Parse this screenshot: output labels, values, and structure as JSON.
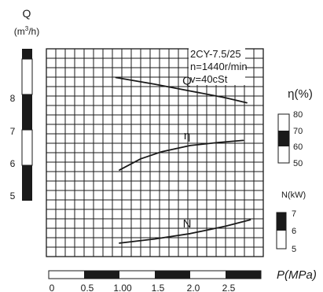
{
  "chart_data": {
    "type": "line",
    "title": "",
    "pump_info": {
      "model": "2CY-7.5/25",
      "speed": "n=1440r/min",
      "viscosity": "v=40cSt"
    },
    "x_axis": {
      "label": "P(MPa)",
      "range": [
        0,
        3
      ],
      "ticks": [
        "0",
        "0.5",
        "1.00",
        "1.5",
        "2.0",
        "2.5"
      ]
    },
    "axes": {
      "Q": {
        "label_symbol": "Q",
        "label_unit_pre": "(m",
        "label_unit_sup": "3",
        "label_unit_post": "/h)",
        "range": [
          4.8,
          9.4
        ],
        "ticks": [
          "5",
          "6",
          "7",
          "8"
        ]
      },
      "eta": {
        "label": "η(%)",
        "range": [
          50,
          80
        ],
        "ticks": [
          "50",
          "60",
          "70",
          "80"
        ]
      },
      "N": {
        "label": "N(kW)",
        "range": [
          5,
          7
        ],
        "ticks": [
          "5",
          "6",
          "7"
        ]
      }
    },
    "series": [
      {
        "name": "Q",
        "axis": "Q",
        "x": [
          0.95,
          1.5,
          2.0,
          2.5,
          2.8
        ],
        "y": [
          8.45,
          8.25,
          8.05,
          7.85,
          7.7
        ]
      },
      {
        "name": "η",
        "axis": "eta",
        "x": [
          1.0,
          1.3,
          1.6,
          2.0,
          2.4,
          2.75
        ],
        "y": [
          51.5,
          57.0,
          60.5,
          63.5,
          65.0,
          66.0
        ]
      },
      {
        "name": "N",
        "axis": "N",
        "x": [
          1.0,
          1.5,
          2.0,
          2.5,
          2.85
        ],
        "y": [
          5.15,
          5.35,
          5.6,
          5.95,
          6.25
        ]
      }
    ],
    "grid": true
  }
}
